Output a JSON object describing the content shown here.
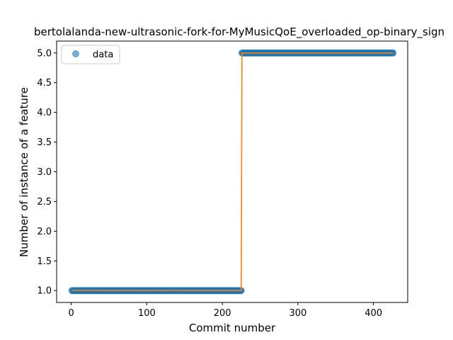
{
  "chart_data": {
    "type": "line",
    "title": "bertolalanda-new-ultrasonic-fork-for-MyMusicQoE_overloaded_op-binary_sign",
    "xlabel": "Commit number",
    "ylabel": "Number of instance of a feature",
    "xlim": [
      -19.3,
      445.3
    ],
    "ylim": [
      0.8,
      5.2
    ],
    "xticks": [
      0,
      100,
      200,
      300,
      400
    ],
    "yticks": [
      1.0,
      1.5,
      2.0,
      2.5,
      3.0,
      3.5,
      4.0,
      4.5,
      5.0
    ],
    "xtick_labels": [
      "0",
      "100",
      "200",
      "300",
      "400"
    ],
    "ytick_labels": [
      "1.0",
      "1.5",
      "2.0",
      "2.5",
      "3.0",
      "3.5",
      "4.0",
      "4.5",
      "5.0"
    ],
    "grid": false,
    "legend": {
      "position": "top-left",
      "entries": [
        "data"
      ]
    },
    "series": [
      {
        "name": "data",
        "style": "markers",
        "color": "#1f77b4",
        "segments": [
          {
            "x_start": 1,
            "x_end": 225,
            "y": 1.0
          },
          {
            "x_start": 226,
            "x_end": 426,
            "y": 5.0
          }
        ]
      },
      {
        "style": "line",
        "color": "#ff7f0e",
        "points": [
          [
            1,
            1.0
          ],
          [
            225,
            1.0
          ],
          [
            226,
            5.0
          ],
          [
            426,
            5.0
          ]
        ]
      }
    ]
  }
}
